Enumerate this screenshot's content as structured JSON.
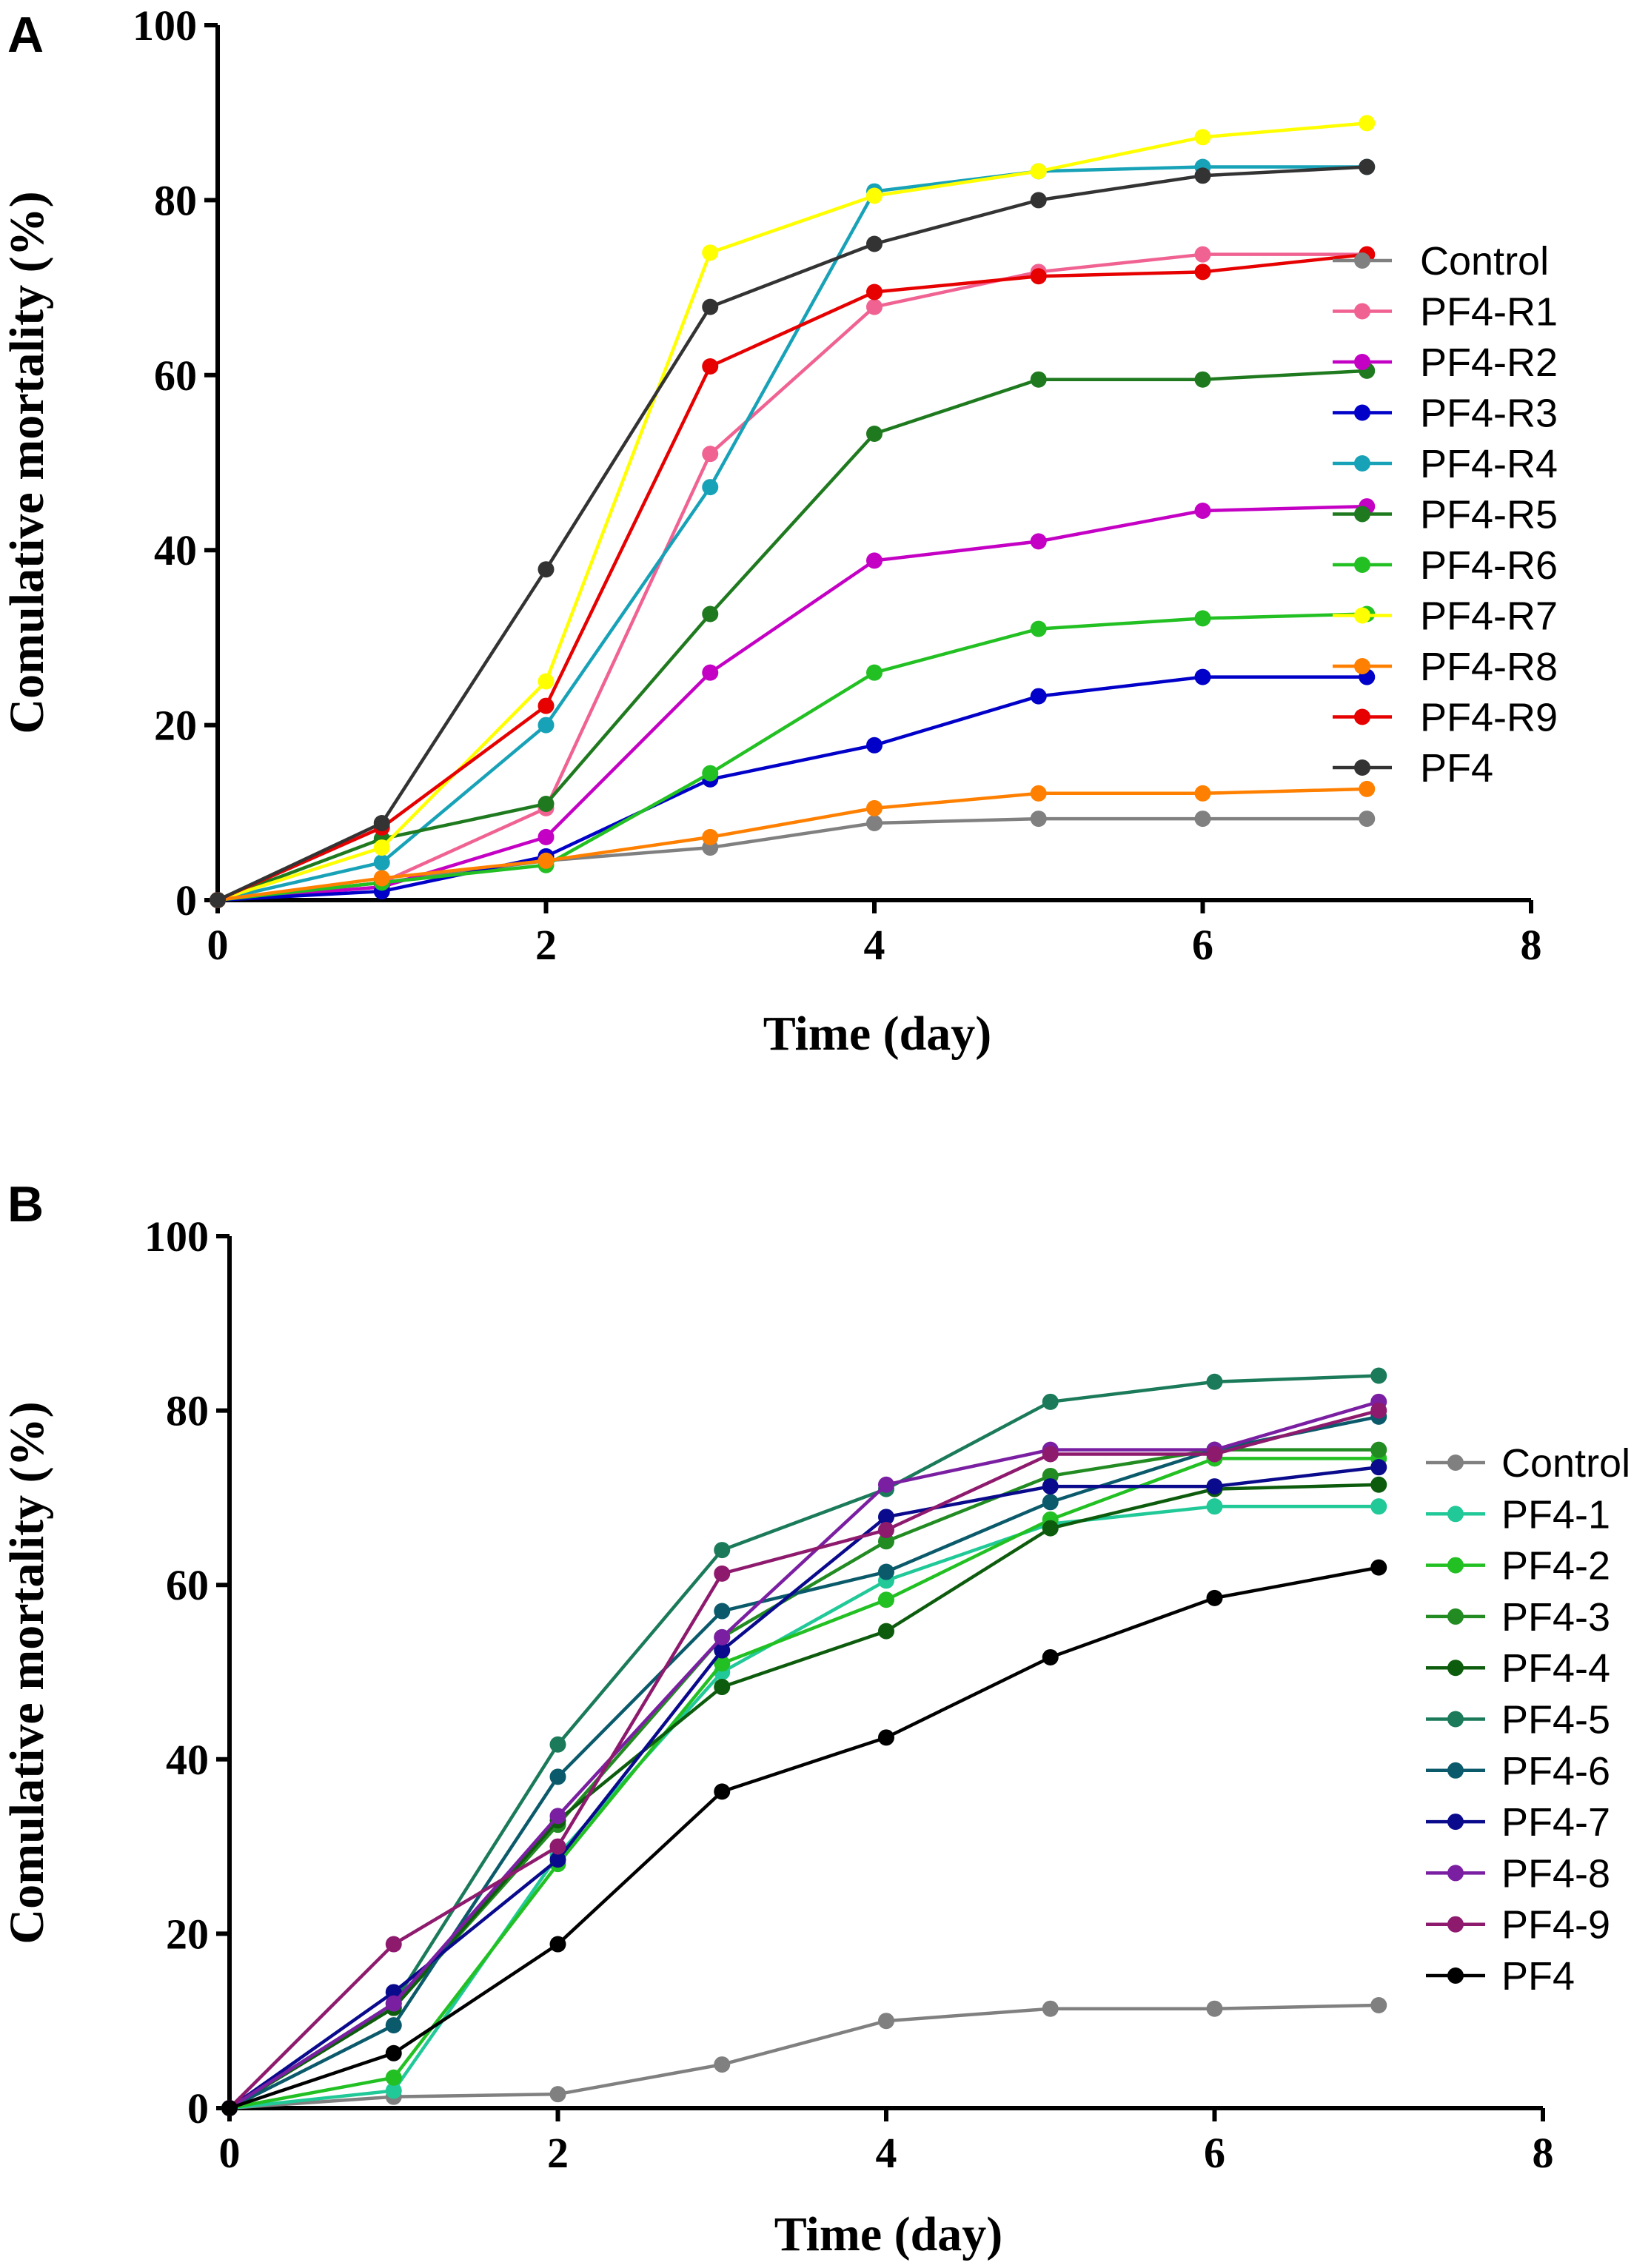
{
  "chart_data": [
    {
      "panel": "A",
      "type": "line",
      "xlabel": "Time (day)",
      "ylabel": "Comulative mortality (%)",
      "xlim": [
        0,
        8
      ],
      "ylim": [
        0,
        100
      ],
      "xticks": [
        0,
        2,
        4,
        6,
        8
      ],
      "yticks": [
        0,
        20,
        40,
        60,
        80,
        100
      ],
      "x": [
        0,
        1,
        2,
        3,
        4,
        5,
        6,
        7
      ],
      "grid": false,
      "legend_position": "right",
      "series": [
        {
          "name": "Control",
          "color": "#808080",
          "values": [
            0,
            2.0,
            4.5,
            6.0,
            8.8,
            9.3,
            9.3,
            9.3
          ]
        },
        {
          "name": "PF4-R1",
          "color": "#F06292",
          "values": [
            0,
            2.0,
            10.5,
            51.0,
            67.8,
            71.8,
            73.8,
            73.8
          ]
        },
        {
          "name": "PF4-R2",
          "color": "#C400C4",
          "values": [
            0,
            1.5,
            7.2,
            26.0,
            38.8,
            41.0,
            44.5,
            45.0
          ]
        },
        {
          "name": "PF4-R3",
          "color": "#0000C8",
          "values": [
            0,
            1.0,
            5.0,
            13.8,
            17.7,
            23.3,
            25.5,
            25.5
          ]
        },
        {
          "name": "PF4-R4",
          "color": "#17A2B8",
          "values": [
            0,
            4.3,
            20.0,
            47.2,
            81.0,
            83.3,
            83.8,
            83.8
          ]
        },
        {
          "name": "PF4-R5",
          "color": "#1F7A1F",
          "values": [
            0,
            7.0,
            11.0,
            32.7,
            53.3,
            59.5,
            59.5,
            60.5
          ]
        },
        {
          "name": "PF4-R6",
          "color": "#22C022",
          "values": [
            0,
            2.0,
            4.0,
            14.5,
            26.0,
            31.0,
            32.2,
            32.7
          ]
        },
        {
          "name": "PF4-R7",
          "color": "#FFFF00",
          "values": [
            0,
            6.0,
            25.0,
            74.0,
            80.5,
            83.3,
            87.2,
            88.8
          ]
        },
        {
          "name": "PF4-R8",
          "color": "#FF8000",
          "values": [
            0,
            2.5,
            4.5,
            7.2,
            10.5,
            12.2,
            12.2,
            12.7
          ]
        },
        {
          "name": "PF4-R9",
          "color": "#E60000",
          "values": [
            0,
            8.3,
            22.2,
            61.0,
            69.5,
            71.3,
            71.8,
            73.8
          ]
        },
        {
          "name": "PF4",
          "color": "#333333",
          "values": [
            0,
            8.8,
            37.8,
            67.8,
            75.0,
            80.0,
            82.8,
            83.8
          ]
        }
      ]
    },
    {
      "panel": "B",
      "type": "line",
      "xlabel": "Time (day)",
      "ylabel": "Comulative mortality (%)",
      "xlim": [
        0,
        8
      ],
      "ylim": [
        0,
        100
      ],
      "xticks": [
        0,
        2,
        4,
        6,
        8
      ],
      "yticks": [
        0,
        20,
        40,
        60,
        80,
        100
      ],
      "x": [
        0,
        1,
        2,
        3,
        4,
        5,
        6,
        7
      ],
      "grid": false,
      "legend_position": "right",
      "series": [
        {
          "name": "Control",
          "color": "#808080",
          "values": [
            0,
            1.3,
            1.6,
            5.0,
            10.0,
            11.4,
            11.4,
            11.8
          ]
        },
        {
          "name": "PF4-1",
          "color": "#20C997",
          "values": [
            0,
            2.0,
            29.0,
            50.0,
            60.5,
            67.0,
            69.0,
            69.0
          ]
        },
        {
          "name": "PF4-2",
          "color": "#22C022",
          "values": [
            0,
            3.5,
            28.0,
            51.0,
            58.3,
            67.5,
            74.5,
            74.5
          ]
        },
        {
          "name": "PF4-3",
          "color": "#228B22",
          "values": [
            0,
            11.5,
            32.5,
            54.0,
            65.0,
            72.5,
            75.5,
            75.5
          ]
        },
        {
          "name": "PF4-4",
          "color": "#0D5C0D",
          "values": [
            0,
            11.5,
            33.0,
            48.3,
            54.7,
            66.5,
            71.0,
            71.5
          ]
        },
        {
          "name": "PF4-5",
          "color": "#1A7A5A",
          "values": [
            0,
            12.0,
            41.7,
            64.0,
            71.0,
            81.0,
            83.3,
            84.0
          ]
        },
        {
          "name": "PF4-6",
          "color": "#0B5A6B",
          "values": [
            0,
            9.5,
            38.0,
            57.0,
            61.5,
            69.5,
            75.5,
            79.3
          ]
        },
        {
          "name": "PF4-7",
          "color": "#0A0A8C",
          "values": [
            0,
            13.3,
            28.5,
            52.5,
            67.8,
            71.3,
            71.3,
            73.5
          ]
        },
        {
          "name": "PF4-8",
          "color": "#7A1FA2",
          "values": [
            0,
            12.0,
            33.5,
            54.0,
            71.5,
            75.5,
            75.5,
            81.0
          ]
        },
        {
          "name": "PF4-9",
          "color": "#8E1A6E",
          "values": [
            0,
            18.8,
            30.0,
            61.3,
            66.3,
            75.0,
            75.0,
            80.0
          ]
        },
        {
          "name": "PF4",
          "color": "#000000",
          "values": [
            0,
            6.3,
            18.8,
            36.3,
            42.5,
            51.7,
            58.5,
            62.0
          ]
        }
      ]
    }
  ],
  "panels": {
    "a_letter": "A",
    "b_letter": "B"
  }
}
